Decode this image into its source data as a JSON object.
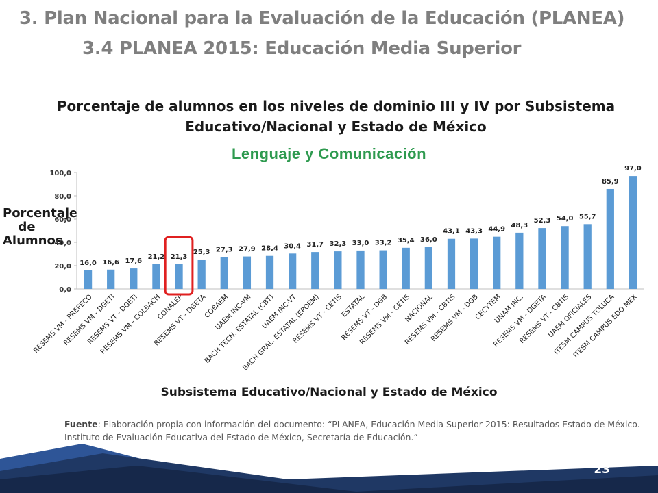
{
  "slide": {
    "heading1": "3. Plan Nacional para la Evaluación de la Educación (PLANEA)",
    "heading2": "3.4 PLANEA 2015: Educación Media Superior",
    "source_prefix": "Fuente",
    "source_text": ": Elaboración propia con información del documento: “PLANEA, Educación Media Superior 2015: Resultados Estado de México. Instituto de Evaluación Educativa del Estado de México, Secretaría de Educación.”",
    "page_number": "23"
  },
  "colors": {
    "bar": "#5b9bd5",
    "highlight_box": "#e02020",
    "subtitle": "#2e9a4f",
    "footer_dark": "#1f3864",
    "footer_mid": "#2e5597"
  },
  "chart_data": {
    "type": "bar",
    "title_line1": "Porcentaje de alumnos en los niveles de dominio III y IV por Subsistema",
    "title_line2": "Educativo/Nacional y Estado de México",
    "subtitle": "Lenguaje y Comunicación",
    "ylabel_line1": "Porcentaje de",
    "ylabel_line2": "Alumnos",
    "xlabel": "Subsistema Educativo/Nacional y Estado de México",
    "ylim": [
      0,
      100
    ],
    "yticks": [
      "0,0",
      "20,0",
      "40,0",
      "60,0",
      "80,0",
      "100,0"
    ],
    "grid": false,
    "highlighted_category": "CONALEP",
    "categories": [
      "RESEMS VM - PREFECO",
      "RESEMS VM - DGETI",
      "RESEMS VT - DGETI",
      "RESEMS VM - COLBACH",
      "CONALEP",
      "RESEMS VT - DGETA",
      "COBAEM",
      "UAEM INC-VM",
      "BACH TECN. ESTATAL (CBT)",
      "UAEM INC-VT",
      "BACH GRAL. ESTATAL (EPOEM)",
      "RESEMS VT - CETIS",
      "ESTATAL",
      "RESEMS VT - DGB",
      "RESEMS VM - CETIS",
      "NACIONAL",
      "RESEMS VM - CBTIS",
      "RESEMS VM - DGB",
      "CECYTEM",
      "UNAM INC.",
      "RESEMS VM - DGETA",
      "RESEMS VT - CBTIS",
      "UAEM OFICIALES",
      "ITESM CAMPUS TOLUCA",
      "ITESM CAMPUS EDO MEX"
    ],
    "values": [
      16.0,
      16.6,
      17.6,
      21.2,
      21.3,
      25.3,
      27.3,
      27.9,
      28.4,
      30.4,
      31.7,
      32.3,
      33.0,
      33.2,
      35.4,
      36.0,
      43.1,
      43.3,
      44.9,
      48.3,
      52.3,
      54.0,
      55.7,
      85.9,
      97.0
    ],
    "value_labels": [
      "16,0",
      "16,6",
      "17,6",
      "21,2",
      "21,3",
      "25,3",
      "27,3",
      "27,9",
      "28,4",
      "30,4",
      "31,7",
      "32,3",
      "33,0",
      "33,2",
      "35,4",
      "36,0",
      "43,1",
      "43,3",
      "44,9",
      "48,3",
      "52,3",
      "54,0",
      "55,7",
      "85,9",
      "97,0"
    ]
  }
}
